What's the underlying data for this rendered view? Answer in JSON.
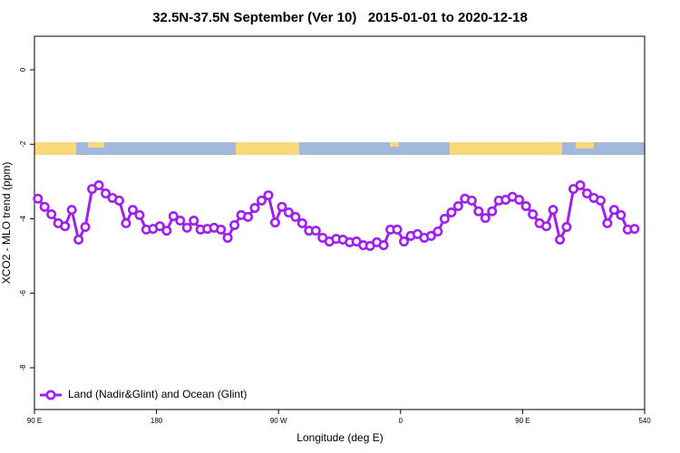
{
  "chart_data": {
    "type": "line",
    "title": "32.5N-37.5N September (Ver 10)   2015-01-01 to 2020-12-18",
    "x_label": "Longitude (deg E)",
    "y_label": "XCO2 - MLO trend (ppm)",
    "x": [
      92.5,
      97.5,
      102.5,
      107.5,
      112.5,
      117.5,
      122.5,
      127.5,
      132.5,
      137.5,
      142.5,
      147.5,
      152.5,
      157.5,
      162.5,
      167.5,
      172.5,
      177.5,
      182.5,
      187.5,
      192.5,
      197.5,
      202.5,
      207.5,
      212.5,
      217.5,
      222.5,
      227.5,
      232.5,
      237.5,
      242.5,
      247.5,
      252.5,
      257.5,
      262.5,
      267.5,
      272.5,
      277.5,
      282.5,
      287.5,
      292.5,
      297.5,
      302.5,
      307.5,
      312.5,
      317.5,
      322.5,
      327.5,
      332.5,
      337.5,
      342.5,
      347.5,
      352.5,
      357.5,
      362.5,
      367.5,
      372.5,
      377.5,
      382.5,
      387.5,
      392.5,
      397.5,
      402.5,
      407.5,
      412.5,
      417.5,
      422.5,
      427.5,
      432.5,
      437.5,
      442.5,
      447.5,
      452.5,
      457.5,
      462.5,
      467.5,
      472.5,
      477.5,
      482.5,
      487.5,
      492.5,
      497.5,
      502.5,
      507.5,
      512.5,
      517.5,
      522.5,
      527.5,
      532.5
    ],
    "series": [
      {
        "name": "Land (Nadir&Glint) and Ocean (Glint)",
        "color": "#a020f0",
        "values": [
          -3.46,
          -3.68,
          -3.88,
          -4.12,
          -4.2,
          -3.76,
          -4.56,
          -4.22,
          -3.2,
          -3.1,
          -3.32,
          -3.44,
          -3.51,
          -4.12,
          -3.76,
          -3.9,
          -4.29,
          -4.27,
          -4.2,
          -4.32,
          -3.93,
          -4.05,
          -4.24,
          -4.05,
          -4.29,
          -4.27,
          -4.24,
          -4.29,
          -4.51,
          -4.17,
          -3.9,
          -3.95,
          -3.71,
          -3.51,
          -3.37,
          -4.1,
          -3.68,
          -3.83,
          -3.95,
          -4.12,
          -4.32,
          -4.32,
          -4.51,
          -4.61,
          -4.54,
          -4.56,
          -4.63,
          -4.61,
          -4.71,
          -4.73,
          -4.63,
          -4.71,
          -4.29,
          -4.29,
          -4.61,
          -4.46,
          -4.41,
          -4.51,
          -4.46,
          -4.34,
          -4.0,
          -3.83,
          -3.66,
          -3.46,
          -3.51,
          -3.8,
          -3.98,
          -3.8,
          -3.51,
          -3.49,
          -3.41,
          -3.49,
          -3.66,
          -3.88,
          -4.12,
          -4.2,
          -3.76,
          -4.56,
          -4.22,
          -3.2,
          -3.1,
          -3.32,
          -3.44,
          -3.51,
          -4.12,
          -3.76,
          -3.9,
          -4.29,
          -4.27
        ]
      }
    ],
    "xlim": [
      90,
      540
    ],
    "xticks": [
      {
        "value": 90,
        "label": "90 E"
      },
      180,
      {
        "value": 270,
        "label": "90 W"
      },
      {
        "value": 360,
        "label": "0"
      },
      {
        "value": 450,
        "label": "90 E"
      },
      540
    ],
    "ylim": [
      -9.12,
      0.9
    ],
    "yticks": [
      0,
      -2,
      -4,
      -6,
      -8
    ],
    "legend": "bottom-left"
  }
}
